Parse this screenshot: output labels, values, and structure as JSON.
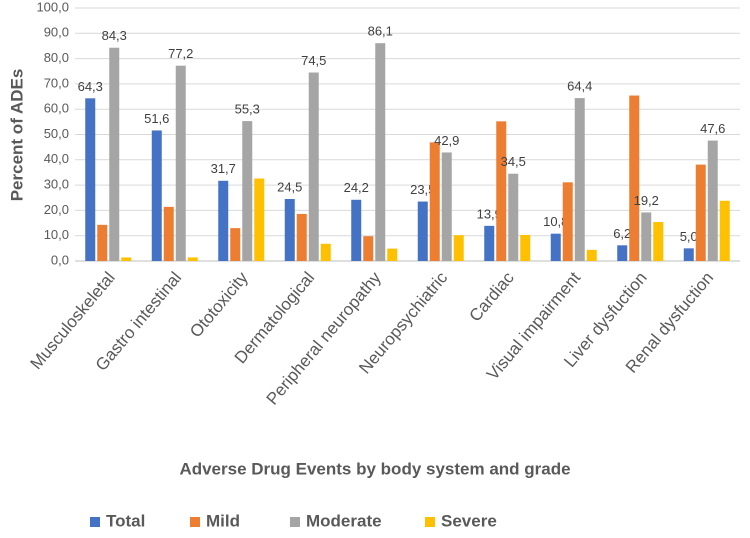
{
  "chart_data": {
    "type": "bar",
    "xlabel": "Adverse Drug Events by body system and grade",
    "ylabel": "Percent of ADEs",
    "categories": [
      "Musculoskeletal",
      "Gastro intestinal",
      "Ototoxicity",
      "Dermatological",
      "Peripheral neuropathy",
      "Neuropsychiatric",
      "Cardiac",
      "Visual impairment",
      "Liver dysfuction",
      "Renal dysfuction"
    ],
    "series": [
      {
        "name": "Total",
        "color": "#4472c4",
        "values": [
          64.3,
          51.6,
          31.7,
          24.5,
          24.2,
          23.5,
          13.9,
          10.8,
          6.2,
          5.0
        ],
        "value_labels": [
          "64,3",
          "51,6",
          "31,7",
          "24,5",
          "24,2",
          "23,5",
          "13,9",
          "10,8",
          "6,2",
          "5,0"
        ]
      },
      {
        "name": "Mild",
        "color": "#ed7d31",
        "values": [
          14.3,
          21.4,
          13.0,
          18.6,
          9.8,
          46.9,
          55.2,
          31.1,
          65.4,
          38.1
        ]
      },
      {
        "name": "Moderate",
        "color": "#a5a5a5",
        "values": [
          84.3,
          77.2,
          55.3,
          74.5,
          86.1,
          42.9,
          34.5,
          64.4,
          19.2,
          47.6
        ],
        "value_labels": [
          "84,3",
          "77,2",
          "55,3",
          "74,5",
          "86,1",
          "42,9",
          "34,5",
          "64,4",
          "19,2",
          "47,6"
        ]
      },
      {
        "name": "Severe",
        "color": "#ffc000",
        "values": [
          1.4,
          1.4,
          32.6,
          6.8,
          4.9,
          10.2,
          10.3,
          4.4,
          15.4,
          23.8
        ]
      }
    ],
    "ylim": [
      0,
      100
    ],
    "yticks": [
      {
        "value": 0,
        "label": "0,0"
      },
      {
        "value": 10,
        "label": "10,0"
      },
      {
        "value": 20,
        "label": "20,0"
      },
      {
        "value": 30,
        "label": "30,0"
      },
      {
        "value": 40,
        "label": "40,0"
      },
      {
        "value": 50,
        "label": "50,0"
      },
      {
        "value": 60,
        "label": "60,0"
      },
      {
        "value": 70,
        "label": "70,0"
      },
      {
        "value": 80,
        "label": "80,0"
      },
      {
        "value": 90,
        "label": "90,0"
      },
      {
        "value": 100,
        "label": "100,0"
      }
    ],
    "grid": true,
    "legend": "bottom"
  }
}
